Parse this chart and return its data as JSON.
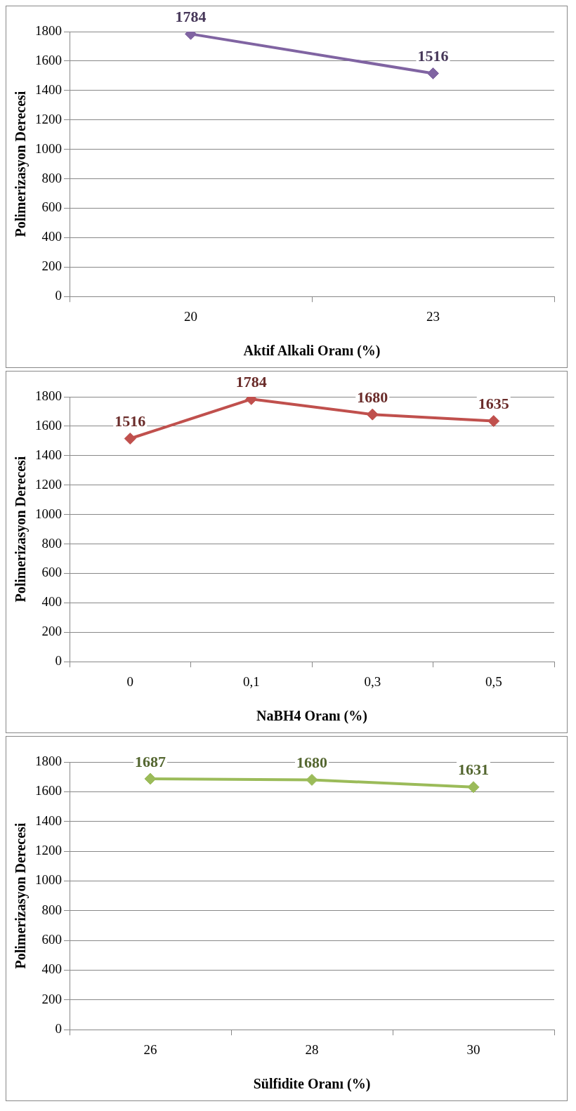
{
  "chart_data": [
    {
      "type": "line",
      "categories": [
        "20",
        "23"
      ],
      "series": [
        {
          "color": "#8064a2",
          "values": [
            1784,
            1516
          ]
        }
      ],
      "xlabel": "Aktif Alkali Oranı (%)",
      "ylabel": "Polimerizasyon Derecesi",
      "ylim": [
        0,
        1800
      ],
      "yticks": [
        0,
        200,
        400,
        600,
        800,
        1000,
        1200,
        1400,
        1600,
        1800
      ],
      "grid": "y",
      "marker": "diamond",
      "data_labels": true
    },
    {
      "type": "line",
      "categories": [
        "0",
        "0,1",
        "0,3",
        "0,5"
      ],
      "series": [
        {
          "color": "#c0504d",
          "values": [
            1516,
            1784,
            1680,
            1635
          ]
        }
      ],
      "xlabel": "NaBH4 Oranı (%)",
      "ylabel": "Polimerizasyon Derecesi",
      "ylim": [
        0,
        1800
      ],
      "yticks": [
        0,
        200,
        400,
        600,
        800,
        1000,
        1200,
        1400,
        1600,
        1800
      ],
      "grid": "y",
      "marker": "diamond",
      "data_labels": true
    },
    {
      "type": "line",
      "categories": [
        "26",
        "28",
        "30"
      ],
      "series": [
        {
          "color": "#9bbb59",
          "values": [
            1687,
            1680,
            1631
          ]
        }
      ],
      "xlabel": "Sülfidite Oranı (%)",
      "ylabel": "Polimerizasyon Derecesi",
      "ylim": [
        0,
        1800
      ],
      "yticks": [
        0,
        200,
        400,
        600,
        800,
        1000,
        1200,
        1400,
        1600,
        1800
      ],
      "grid": "y",
      "marker": "diamond",
      "data_labels": true
    }
  ]
}
